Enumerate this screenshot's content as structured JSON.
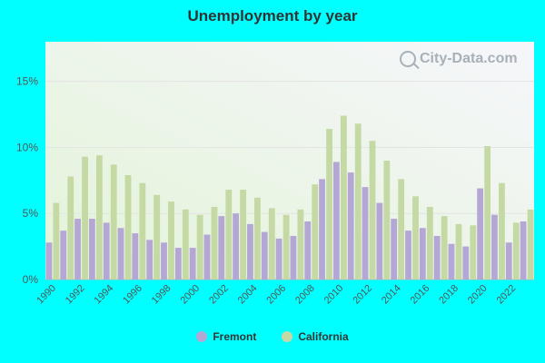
{
  "chart_data": {
    "type": "bar",
    "title": "Unemployment by year",
    "x": [
      1990,
      1991,
      1992,
      1993,
      1994,
      1995,
      1996,
      1997,
      1998,
      1999,
      2000,
      2001,
      2002,
      2003,
      2004,
      2005,
      2006,
      2007,
      2008,
      2009,
      2010,
      2011,
      2012,
      2013,
      2014,
      2015,
      2016,
      2017,
      2018,
      2019,
      2020,
      2021,
      2022,
      2023
    ],
    "x_tick_labels": [
      "1990",
      "1992",
      "1994",
      "1996",
      "1998",
      "2000",
      "2002",
      "2004",
      "2006",
      "2008",
      "2010",
      "2012",
      "2014",
      "2016",
      "2018",
      "2020",
      "2022"
    ],
    "y_tick_labels": [
      "0%",
      "5%",
      "10%",
      "15%"
    ],
    "ylim": [
      0,
      18
    ],
    "series": [
      {
        "name": "Fremont",
        "color": "#b4a7d6",
        "values": [
          2.8,
          3.7,
          4.6,
          4.6,
          4.3,
          3.9,
          3.5,
          3.0,
          2.8,
          2.4,
          2.4,
          3.4,
          4.8,
          5.0,
          4.2,
          3.6,
          3.1,
          3.3,
          4.4,
          7.6,
          8.9,
          8.1,
          7.0,
          5.8,
          4.6,
          3.7,
          3.9,
          3.3,
          2.7,
          2.5,
          6.9,
          4.9,
          2.8,
          4.4
        ]
      },
      {
        "name": "California",
        "color": "#c4d9a3",
        "values": [
          5.8,
          7.8,
          9.3,
          9.4,
          8.7,
          7.9,
          7.3,
          6.4,
          5.9,
          5.3,
          4.9,
          5.5,
          6.8,
          6.8,
          6.2,
          5.4,
          4.9,
          5.3,
          7.2,
          11.4,
          12.4,
          11.8,
          10.5,
          9.0,
          7.6,
          6.3,
          5.5,
          4.8,
          4.2,
          4.1,
          10.1,
          7.3,
          4.3,
          5.3
        ]
      }
    ],
    "grid": true,
    "legend_position": "bottom-center"
  },
  "watermark": {
    "text": "City-Data.com"
  },
  "colors": {
    "background": "#00ffff",
    "plot_bg_left": "#e6f5de",
    "plot_bg_right": "#f7f7fb"
  }
}
